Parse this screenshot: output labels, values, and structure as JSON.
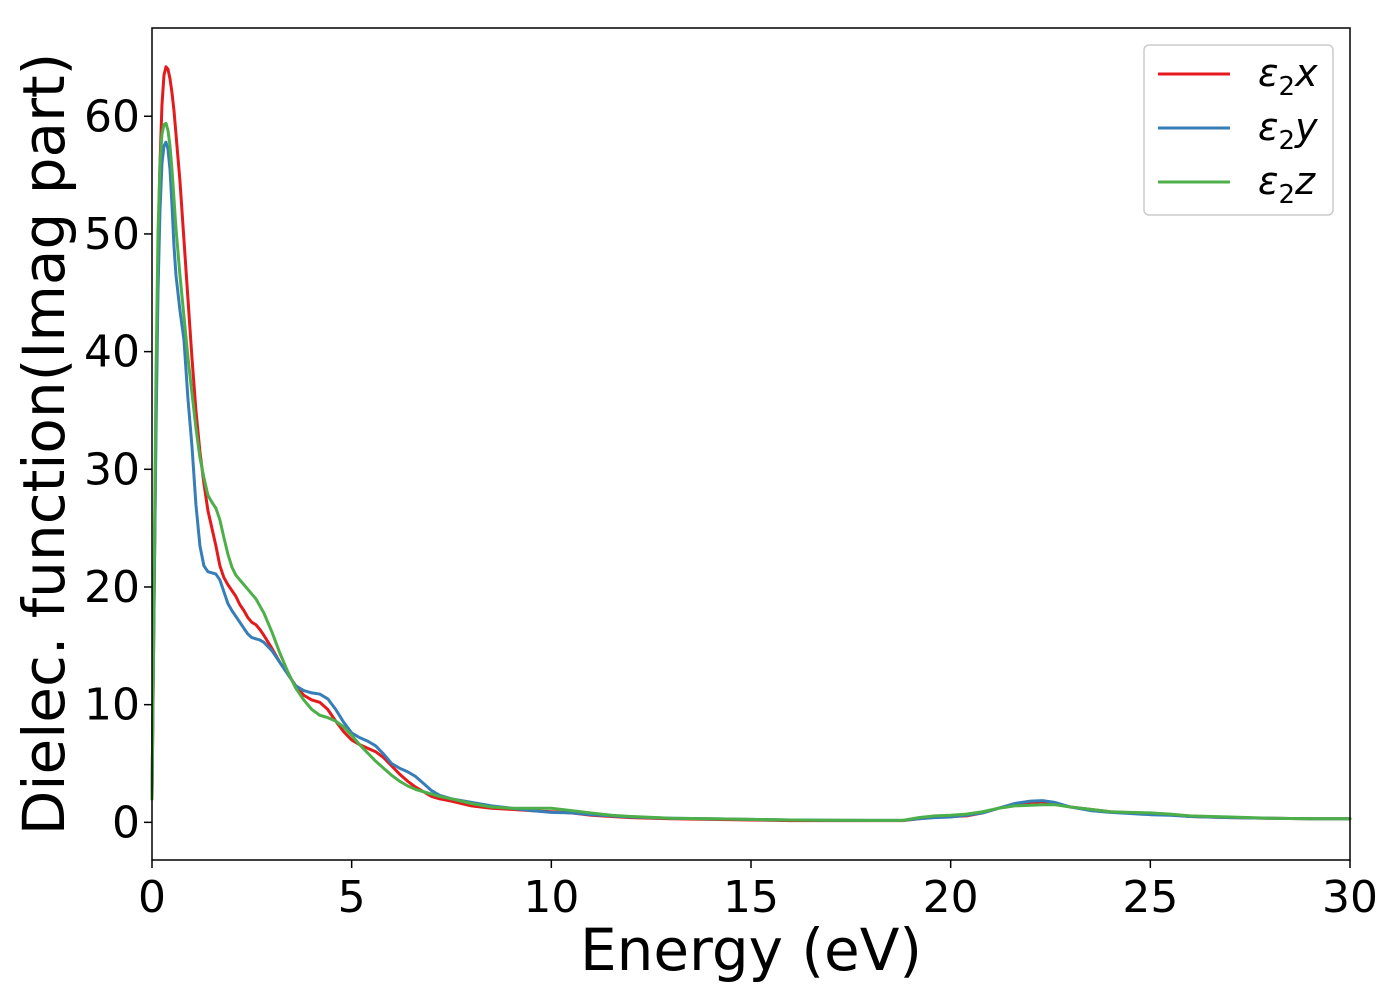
{
  "chart_data": {
    "type": "line",
    "title": "",
    "xlabel": "Energy (eV)",
    "ylabel": "Dielec. function(Imag part)",
    "xlim": [
      0,
      30
    ],
    "ylim": [
      -3.2,
      67.5
    ],
    "xticks": [
      0,
      5,
      10,
      15,
      20,
      25,
      30
    ],
    "yticks": [
      0,
      10,
      20,
      30,
      40,
      50,
      60
    ],
    "grid": false,
    "legend_position": "top-right",
    "series": [
      {
        "name": "ε₂x",
        "legend_main": "ε",
        "legend_sub": "2",
        "legend_suffix": "x",
        "color": "#e41a1c",
        "x": [
          0,
          0.05,
          0.1,
          0.15,
          0.2,
          0.25,
          0.3,
          0.35,
          0.4,
          0.45,
          0.5,
          0.55,
          0.6,
          0.7,
          0.8,
          0.9,
          1.0,
          1.1,
          1.2,
          1.3,
          1.4,
          1.5,
          1.6,
          1.7,
          1.8,
          1.9,
          2.0,
          2.1,
          2.2,
          2.3,
          2.4,
          2.5,
          2.6,
          2.7,
          2.8,
          3.0,
          3.2,
          3.4,
          3.6,
          3.8,
          4.0,
          4.2,
          4.4,
          4.6,
          4.8,
          5.0,
          5.2,
          5.4,
          5.6,
          5.8,
          6.0,
          6.2,
          6.4,
          6.6,
          6.8,
          7.0,
          7.2,
          7.5,
          8.0,
          8.5,
          9.0,
          9.5,
          10.0,
          10.5,
          11.0,
          11.5,
          12.0,
          13.0,
          14.0,
          15.0,
          16.0,
          17.0,
          18.0,
          18.8,
          19.2,
          19.6,
          20.0,
          20.4,
          20.8,
          21.2,
          21.6,
          22.0,
          22.3,
          22.6,
          23.0,
          23.5,
          24.0,
          24.5,
          25.0,
          25.5,
          26.0,
          27.0,
          28.0,
          29.0,
          30.0
        ],
        "y": [
          2,
          18,
          35,
          48,
          56,
          61,
          63.5,
          64.2,
          64,
          63.2,
          62,
          60.5,
          58.5,
          54.5,
          49.5,
          44.5,
          39.5,
          35,
          31.5,
          28.8,
          26.5,
          25,
          23.5,
          21.8,
          20.8,
          20.2,
          19.7,
          19.2,
          18.5,
          18,
          17.4,
          17,
          16.8,
          16.4,
          15.9,
          14.8,
          13.6,
          12.6,
          11.6,
          10.8,
          10.4,
          10.2,
          9.6,
          8.6,
          7.7,
          7.0,
          6.6,
          6.3,
          6.0,
          5.5,
          4.8,
          4.1,
          3.5,
          3.0,
          2.6,
          2.2,
          2.0,
          1.8,
          1.4,
          1.2,
          1.1,
          1.0,
          0.9,
          0.8,
          0.6,
          0.5,
          0.4,
          0.3,
          0.25,
          0.2,
          0.15,
          0.15,
          0.15,
          0.15,
          0.3,
          0.45,
          0.5,
          0.55,
          0.8,
          1.2,
          1.5,
          1.7,
          1.75,
          1.6,
          1.3,
          1.1,
          0.9,
          0.8,
          0.7,
          0.65,
          0.5,
          0.4,
          0.35,
          0.3,
          0.3
        ]
      },
      {
        "name": "ε₂y",
        "legend_main": "ε",
        "legend_sub": "2",
        "legend_suffix": "y",
        "color": "#377eb8",
        "x": [
          0,
          0.05,
          0.1,
          0.15,
          0.2,
          0.25,
          0.3,
          0.35,
          0.4,
          0.45,
          0.5,
          0.55,
          0.6,
          0.7,
          0.8,
          0.9,
          1.0,
          1.1,
          1.2,
          1.3,
          1.4,
          1.5,
          1.6,
          1.7,
          1.8,
          1.9,
          2.0,
          2.1,
          2.2,
          2.3,
          2.4,
          2.5,
          2.6,
          2.7,
          2.8,
          3.0,
          3.2,
          3.4,
          3.6,
          3.8,
          4.0,
          4.2,
          4.4,
          4.6,
          4.8,
          5.0,
          5.2,
          5.4,
          5.6,
          5.8,
          6.0,
          6.2,
          6.4,
          6.6,
          6.8,
          7.0,
          7.2,
          7.5,
          8.0,
          8.5,
          9.0,
          9.5,
          10.0,
          10.5,
          11.0,
          11.5,
          12.0,
          13.0,
          14.0,
          15.0,
          16.0,
          17.0,
          18.0,
          18.8,
          19.2,
          19.6,
          20.0,
          20.4,
          20.8,
          21.2,
          21.6,
          22.0,
          22.3,
          22.6,
          23.0,
          23.5,
          24.0,
          24.5,
          25.0,
          25.5,
          26.0,
          27.0,
          28.0,
          29.0,
          30.0
        ],
        "y": [
          2,
          18,
          33,
          45,
          52,
          56,
          57.5,
          57.8,
          57.2,
          55.5,
          52.5,
          49,
          46.5,
          43.5,
          41,
          36,
          32,
          27,
          23.5,
          21.8,
          21.3,
          21.2,
          21.1,
          20.6,
          19.6,
          18.6,
          18.0,
          17.5,
          17.0,
          16.5,
          16.0,
          15.7,
          15.6,
          15.5,
          15.3,
          14.6,
          13.6,
          12.6,
          11.6,
          11.2,
          11.0,
          10.9,
          10.5,
          9.6,
          8.5,
          7.6,
          7.2,
          6.9,
          6.5,
          5.8,
          5.0,
          4.6,
          4.3,
          3.9,
          3.3,
          2.7,
          2.3,
          2.0,
          1.7,
          1.4,
          1.2,
          1.0,
          0.85,
          0.8,
          0.65,
          0.55,
          0.45,
          0.35,
          0.3,
          0.25,
          0.2,
          0.18,
          0.17,
          0.17,
          0.3,
          0.4,
          0.45,
          0.6,
          0.8,
          1.2,
          1.6,
          1.8,
          1.85,
          1.7,
          1.3,
          1.0,
          0.85,
          0.75,
          0.65,
          0.6,
          0.5,
          0.4,
          0.35,
          0.3,
          0.3
        ]
      },
      {
        "name": "ε₂z",
        "legend_main": "ε",
        "legend_sub": "2",
        "legend_suffix": "z",
        "color": "#4daf4a",
        "x": [
          0,
          0.05,
          0.1,
          0.15,
          0.2,
          0.25,
          0.3,
          0.35,
          0.4,
          0.45,
          0.5,
          0.55,
          0.6,
          0.7,
          0.8,
          0.9,
          1.0,
          1.1,
          1.2,
          1.3,
          1.4,
          1.5,
          1.6,
          1.7,
          1.8,
          1.9,
          2.0,
          2.1,
          2.2,
          2.3,
          2.4,
          2.5,
          2.6,
          2.7,
          2.8,
          3.0,
          3.2,
          3.4,
          3.6,
          3.8,
          4.0,
          4.2,
          4.4,
          4.6,
          4.8,
          5.0,
          5.2,
          5.4,
          5.6,
          5.8,
          6.0,
          6.2,
          6.4,
          6.6,
          6.8,
          7.0,
          7.2,
          7.5,
          8.0,
          8.5,
          9.0,
          9.5,
          10.0,
          10.5,
          11.0,
          11.5,
          12.0,
          13.0,
          14.0,
          15.0,
          16.0,
          17.0,
          18.0,
          18.8,
          19.2,
          19.6,
          20.0,
          20.4,
          20.8,
          21.2,
          21.6,
          22.0,
          22.3,
          22.6,
          23.0,
          23.5,
          24.0,
          24.5,
          25.0,
          25.5,
          26.0,
          27.0,
          28.0,
          29.0,
          30.0
        ],
        "y": [
          2,
          20,
          38,
          50,
          56,
          58.5,
          59.3,
          59.4,
          58.8,
          57.5,
          55.5,
          53,
          50.5,
          46.5,
          43,
          39.5,
          36.5,
          33.5,
          31,
          29.3,
          27.8,
          27.2,
          26.7,
          25.7,
          24.2,
          22.8,
          21.7,
          21.0,
          20.6,
          20.2,
          19.8,
          19.4,
          19.0,
          18.4,
          17.8,
          16.2,
          14.4,
          12.8,
          11.4,
          10.4,
          9.6,
          9.1,
          8.9,
          8.6,
          8.1,
          7.4,
          6.6,
          5.9,
          5.2,
          4.6,
          4.0,
          3.5,
          3.1,
          2.8,
          2.6,
          2.4,
          2.2,
          2.0,
          1.6,
          1.3,
          1.2,
          1.2,
          1.2,
          1.0,
          0.8,
          0.6,
          0.5,
          0.35,
          0.3,
          0.25,
          0.2,
          0.18,
          0.17,
          0.17,
          0.4,
          0.55,
          0.6,
          0.7,
          0.9,
          1.2,
          1.4,
          1.45,
          1.5,
          1.5,
          1.3,
          1.1,
          0.9,
          0.85,
          0.8,
          0.7,
          0.55,
          0.45,
          0.35,
          0.3,
          0.3
        ]
      }
    ]
  }
}
